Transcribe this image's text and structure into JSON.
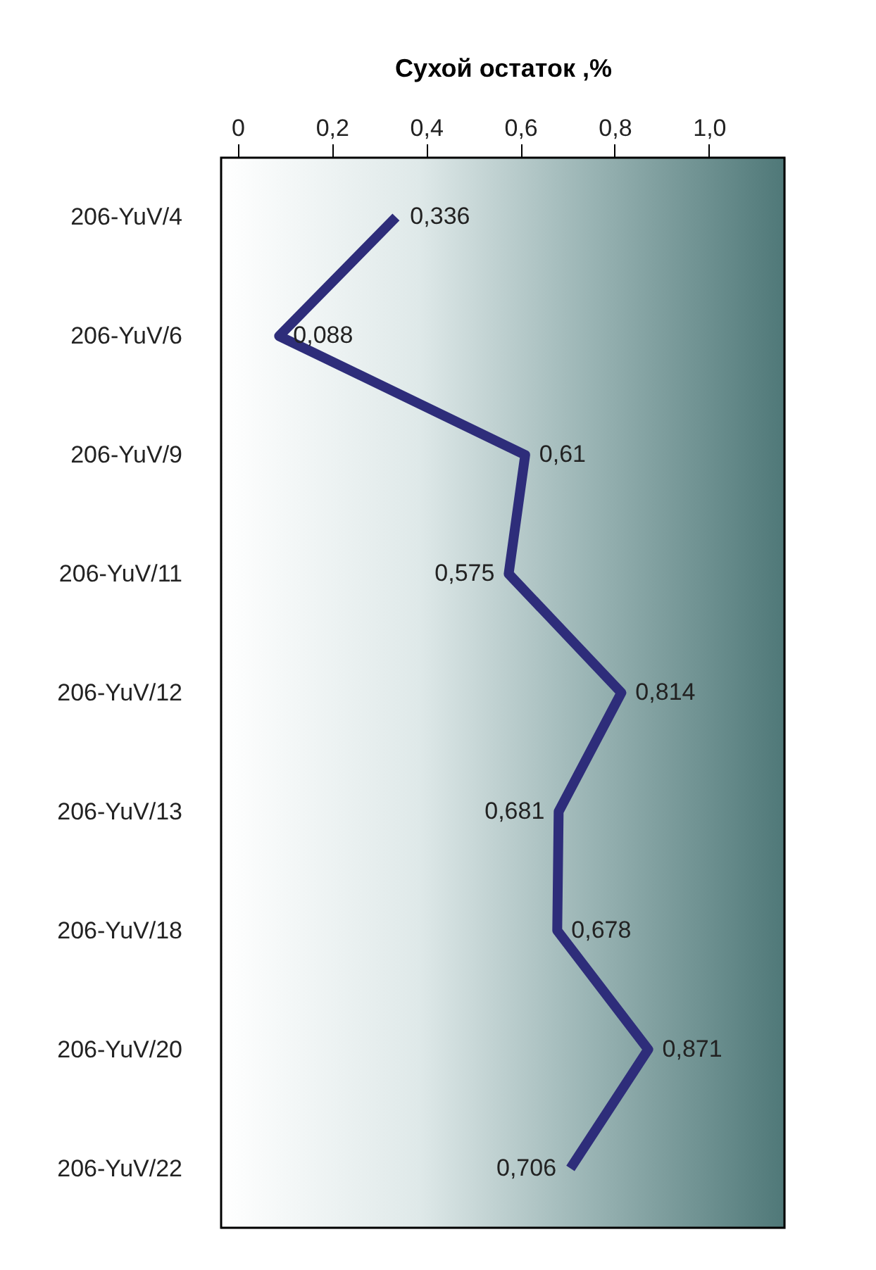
{
  "chart_data": {
    "type": "line",
    "orientation": "horizontal",
    "xlabel": "Сухой остаток ,%",
    "categories": [
      "206-YuV/4",
      "206-YuV/6",
      "206-YuV/9",
      "206-YuV/11",
      "206-YuV/12",
      "206-YuV/13",
      "206-YuV/18",
      "206-YuV/20",
      "206-YuV/22"
    ],
    "series": [
      {
        "color": "#2e2d7a",
        "values": [
          0.336,
          0.088,
          0.61,
          0.575,
          0.814,
          0.681,
          0.678,
          0.871,
          0.706
        ],
        "value_labels": [
          "0,336",
          "0,088",
          "0,61",
          "0,575",
          "0,814",
          "0,681",
          "0,678",
          "0,871",
          "0,706"
        ]
      }
    ],
    "xlim": [
      -0.035,
      1.16
    ],
    "xticks": [
      {
        "value": 0,
        "label": "0"
      },
      {
        "value": 0.2,
        "label": "0,2"
      },
      {
        "value": 0.4,
        "label": "0,4"
      },
      {
        "value": 0.6,
        "label": "0,6"
      },
      {
        "value": 0.8,
        "label": "0,8"
      },
      {
        "value": 1.0,
        "label": "1,0"
      }
    ],
    "marker": "none",
    "line_style": "solid"
  }
}
